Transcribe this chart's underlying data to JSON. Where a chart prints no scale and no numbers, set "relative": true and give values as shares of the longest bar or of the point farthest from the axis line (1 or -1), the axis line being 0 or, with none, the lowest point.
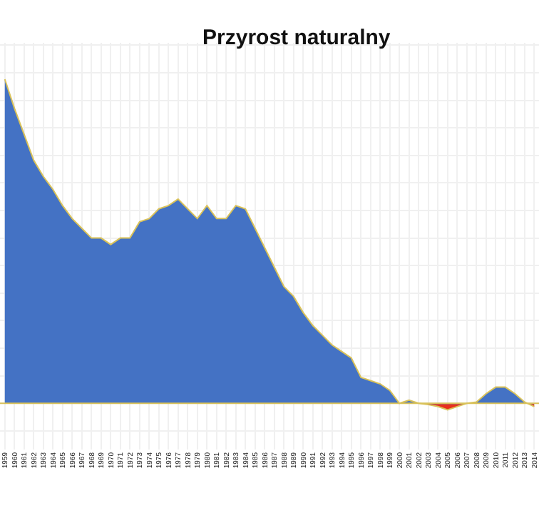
{
  "chart_data": {
    "type": "area",
    "title": "Przyrost naturalny",
    "relative": true,
    "grid": true,
    "ref_lines": [
      {
        "axis": "y",
        "value": 0,
        "color": "#d9c25a"
      }
    ],
    "categories": [
      "1959",
      "1960",
      "1961",
      "1962",
      "1963",
      "1964",
      "1965",
      "1966",
      "1967",
      "1968",
      "1969",
      "1970",
      "1971",
      "1972",
      "1973",
      "1974",
      "1975",
      "1976",
      "1977",
      "1978",
      "1979",
      "1980",
      "1981",
      "1982",
      "1983",
      "1984",
      "1985",
      "1986",
      "1987",
      "1988",
      "1989",
      "1990",
      "1991",
      "1992",
      "1993",
      "1994",
      "1995",
      "1996",
      "1997",
      "1998",
      "1999",
      "2000",
      "2001",
      "2002",
      "2003",
      "2004",
      "2005",
      "2006",
      "2007",
      "2008",
      "2009",
      "2010",
      "2011",
      "2012",
      "2013",
      "2014"
    ],
    "series": [
      {
        "values": [
          1.0,
          0.91,
          0.83,
          0.75,
          0.7,
          0.66,
          0.61,
          0.57,
          0.54,
          0.51,
          0.51,
          0.49,
          0.51,
          0.51,
          0.56,
          0.57,
          0.6,
          0.61,
          0.63,
          0.6,
          0.57,
          0.61,
          0.57,
          0.57,
          0.61,
          0.6,
          0.54,
          0.48,
          0.42,
          0.36,
          0.33,
          0.28,
          0.24,
          0.21,
          0.18,
          0.16,
          0.14,
          0.08,
          0.07,
          0.06,
          0.04,
          0.0,
          0.01,
          0.0,
          -0.004,
          -0.01,
          -0.02,
          -0.01,
          0.0,
          0.004,
          0.03,
          0.05,
          0.05,
          0.03,
          0.004,
          -0.01
        ],
        "colors": [
          "#4472c4",
          "#4472c4",
          "#4472c4",
          "#4472c4",
          "#4472c4",
          "#4472c4",
          "#4472c4",
          "#4472c4",
          "#4472c4",
          "#4472c4",
          "#4472c4",
          "#4472c4",
          "#4472c4",
          "#4472c4",
          "#4472c4",
          "#4472c4",
          "#4472c4",
          "#4472c4",
          "#4472c4",
          "#4472c4",
          "#4472c4",
          "#4472c4",
          "#4472c4",
          "#4472c4",
          "#4472c4",
          "#4472c4",
          "#4472c4",
          "#4472c4",
          "#4472c4",
          "#4472c4",
          "#4472c4",
          "#4472c4",
          "#4472c4",
          "#4472c4",
          "#4472c4",
          "#4472c4",
          "#4472c4",
          "#4472c4",
          "#4472c4",
          "#4472c4",
          "#4472c4",
          "#4472c4",
          "#4472c4",
          "#4472c4",
          "#e8301c",
          "#e8301c",
          "#e8301c",
          "#e8301c",
          "#4472c4",
          "#4472c4",
          "#4472c4",
          "#4472c4",
          "#4472c4",
          "#4472c4",
          "#4472c4",
          "#e8301c"
        ]
      }
    ]
  }
}
